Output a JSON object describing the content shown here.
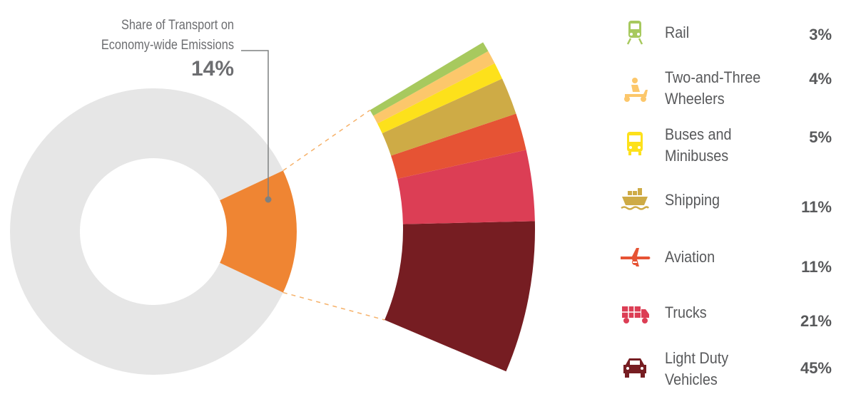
{
  "chart_data": {
    "type": "pie",
    "title": "",
    "share": {
      "label_line1": "Share of Transport on",
      "label_line2": "Economy-wide Emissions",
      "value": 14,
      "value_label": "14%",
      "transport_color": "#ef8533",
      "rest_color": "#e6e6e6"
    },
    "breakdown": [
      {
        "name_line1": "Rail",
        "name_line2": "",
        "value": 3,
        "value_label": "3%",
        "color": "#a7c95e",
        "icon": "train-icon"
      },
      {
        "name_line1": "Two-and-Three",
        "name_line2": "Wheelers",
        "value": 4,
        "value_label": "4%",
        "color": "#fcc76b",
        "icon": "scooter-icon"
      },
      {
        "name_line1": "Buses and",
        "name_line2": "Minibuses",
        "value": 5,
        "value_label": "5%",
        "color": "#fde11b",
        "icon": "bus-icon"
      },
      {
        "name_line1": "Shipping",
        "name_line2": "",
        "value": 11,
        "value_label": "11%",
        "color": "#ceab46",
        "icon": "ship-icon"
      },
      {
        "name_line1": "Aviation",
        "name_line2": "",
        "value": 11,
        "value_label": "11%",
        "color": "#e65334",
        "icon": "airplane-icon"
      },
      {
        "name_line1": "Trucks",
        "name_line2": "",
        "value": 21,
        "value_label": "21%",
        "color": "#dc3e55",
        "icon": "truck-icon"
      },
      {
        "name_line1": "Light Duty",
        "name_line2": "Vehicles",
        "value": 45,
        "value_label": "45%",
        "color": "#761d22",
        "icon": "car-icon"
      }
    ]
  }
}
